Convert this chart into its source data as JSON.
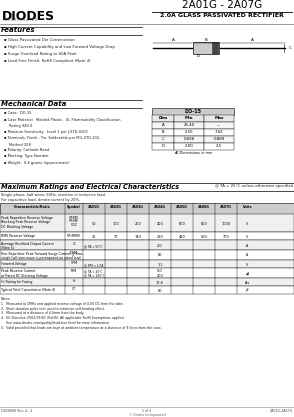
{
  "title_part": "2A01G - 2A07G",
  "title_sub": "2.0A GLASS PASSIVATED RECTIFIER",
  "bg_color": "#ffffff",
  "features_title": "Features",
  "features": [
    "Glass Passivated Die Construction",
    "High Current Capability and Low Forward Voltage Drop",
    "Surge Overload Rating to 60A Peak",
    "Lead Free Finish, RoHS Compliant (Note 4)"
  ],
  "mech_title": "Mechanical Data",
  "mech_items": [
    [
      "bullet",
      "Case:  DO-15"
    ],
    [
      "bullet",
      "Case Material:  Molded Plastic.  UL Flammability Classification"
    ],
    [
      "indent",
      "Rating 94V-0"
    ],
    [
      "bullet",
      "Moisture Sensitivity:  Level 1 per J-STD-020C"
    ],
    [
      "bullet",
      "Terminals: Finish - Tin. Solderable per MIL-STD-202,"
    ],
    [
      "indent",
      "Method 208"
    ],
    [
      "bullet",
      "Polarity: Cathode Band"
    ],
    [
      "bullet",
      "Marking: Type Number"
    ],
    [
      "bullet",
      "Weight:  0.4 grams (approximate)"
    ]
  ],
  "dim_table_title": "DO-15",
  "dim_headers": [
    "Dim",
    "Min",
    "Max"
  ],
  "dim_rows": [
    [
      "A",
      "25.40",
      "---"
    ],
    [
      "B",
      "5.50",
      "7.62"
    ],
    [
      "C",
      "0.698",
      "0.889"
    ],
    [
      "D",
      "2.00",
      "2.5"
    ]
  ],
  "dim_note": "All Dimensions in mm",
  "max_ratings_title": "Maximum Ratings and Electrical Characteristics",
  "max_ratings_note": "@ TA = 25°C unless otherwise specified",
  "single_phase_note": "Single phase, half wave, 60Hz, resistive or inductive load.\nFor capacitive load, derate current by 20%.",
  "char_headers": [
    "Characteristic/Ratio",
    "Symbol",
    "2A01G",
    "2A02G",
    "2A03G",
    "2A04G",
    "2A05G",
    "2A06G",
    "2A07G",
    "Units"
  ],
  "char_rows": [
    {
      "name": "Peak Repetitive Reverse Voltage\nBlocking Peak Reverse Voltage\nDC Blocking Voltage",
      "symbol": "VRRM\nVRSM\nVDC",
      "values": [
        "50",
        "100",
        "200",
        "400",
        "600",
        "800",
        "1000"
      ],
      "span": false,
      "units": "V",
      "rh": 18
    },
    {
      "name": "RMS Reverse Voltage",
      "symbol": "VR(RMS)",
      "values": [
        "35",
        "70",
        "140",
        "280",
        "420",
        "560",
        "700"
      ],
      "span": false,
      "units": "V",
      "rh": 8
    },
    {
      "name": "Average Rectified Output Current\n(Note 5)",
      "symbol": "IO",
      "sidenote": "@ TA = 55°C",
      "values": [
        "2.0"
      ],
      "span": true,
      "units": "A",
      "rh": 10
    },
    {
      "name": "Non-Repetitive Peak Forward Surge Current @ 8ms\nsingle half sine-wave superimposed on rated load",
      "symbol": "IFSM",
      "values": [
        "60"
      ],
      "span": true,
      "units": "A",
      "rh": 10
    },
    {
      "name": "Forward Voltage",
      "symbol": "VFM",
      "sidenote": "@ IFM = 2.0A",
      "values": [
        "1.1"
      ],
      "span": true,
      "units": "V",
      "rh": 8
    },
    {
      "name": "Peak Reverse Current\nat Rated DC Blocking Voltage",
      "symbol": "IRM",
      "sidenote1": "@ TA = 25°C",
      "sidenote2": "@ TA = 100°C",
      "values": [
        "5.0",
        "200"
      ],
      "span": true,
      "units": "μA",
      "rh": 10
    },
    {
      "name": "I²t Rating for Fusing",
      "symbol": "I²t",
      "values": [
        "17.6"
      ],
      "span": true,
      "units": "A²s",
      "rh": 8
    },
    {
      "name": "Typical Total Capacitance (Note 4)",
      "symbol": "CT",
      "values": [
        "60"
      ],
      "span": true,
      "units": "pF",
      "rh": 8
    }
  ],
  "footer_notes": [
    "Notes:",
    "1.  Measured at 1MHz and applied reverse voltage of 4.0V DC from the date.",
    "2.  Short duration pulse test used to minimize self-heating effect.",
    "3.  Measured at a distance of 4.0mm from the body.",
    "4.  EU Directive 2002/95/EC (RoHS). All applicable RoHS Exemptions applied.",
    "     See www.diodes.com/quality/lead-free.html for more information.",
    "5.  Valid provided that leads are kept at ambient temperature at a distance of 9.5mm from the case."
  ],
  "footer_left": "DS28006 Rev. 4 - 2",
  "footer_center": "1 of 3",
  "footer_right": "2A01G-2A07G",
  "footer_brand": "© Diodes Incorporated"
}
